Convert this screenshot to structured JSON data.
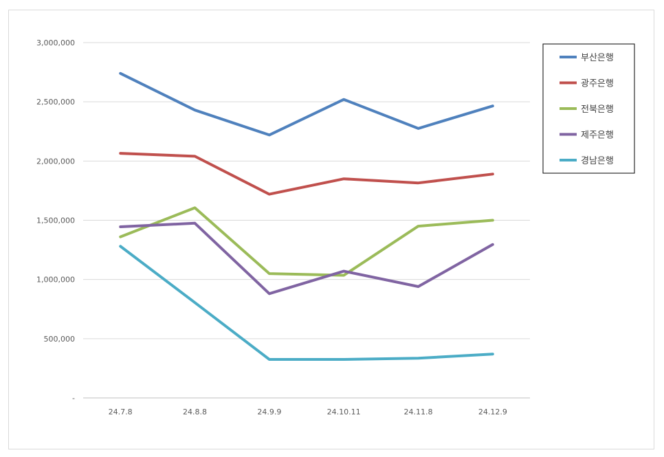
{
  "chart_data": {
    "type": "line",
    "title": "",
    "xlabel": "",
    "ylabel": "",
    "categories": [
      "24.7.8",
      "24.8.8",
      "24.9.9",
      "24.10.11",
      "24.11.8",
      "24.12.9"
    ],
    "ylim": [
      0,
      3000000
    ],
    "yticks": [
      0,
      500000,
      1000000,
      1500000,
      2000000,
      2500000,
      3000000
    ],
    "ytick_labels": [
      "-",
      "500,000",
      "1,000,000",
      "1,500,000",
      "2,000,000",
      "2,500,000",
      "3,000,000"
    ],
    "grid": true,
    "legend_position": "right",
    "series": [
      {
        "name": "부산은행",
        "color": "#4f81bd",
        "values": [
          2740000,
          2430000,
          2220000,
          2520000,
          2275000,
          2465000
        ]
      },
      {
        "name": "광주은행",
        "color": "#c0504d",
        "values": [
          2065000,
          2040000,
          1720000,
          1850000,
          1815000,
          1890000
        ]
      },
      {
        "name": "전북은행",
        "color": "#9bbb59",
        "values": [
          1360000,
          1605000,
          1050000,
          1035000,
          1450000,
          1500000
        ]
      },
      {
        "name": "제주은행",
        "color": "#8064a2",
        "values": [
          1445000,
          1475000,
          880000,
          1070000,
          940000,
          1295000
        ]
      },
      {
        "name": "경남은행",
        "color": "#4bacc6",
        "values": [
          1280000,
          805000,
          325000,
          325000,
          335000,
          370000
        ]
      }
    ]
  }
}
